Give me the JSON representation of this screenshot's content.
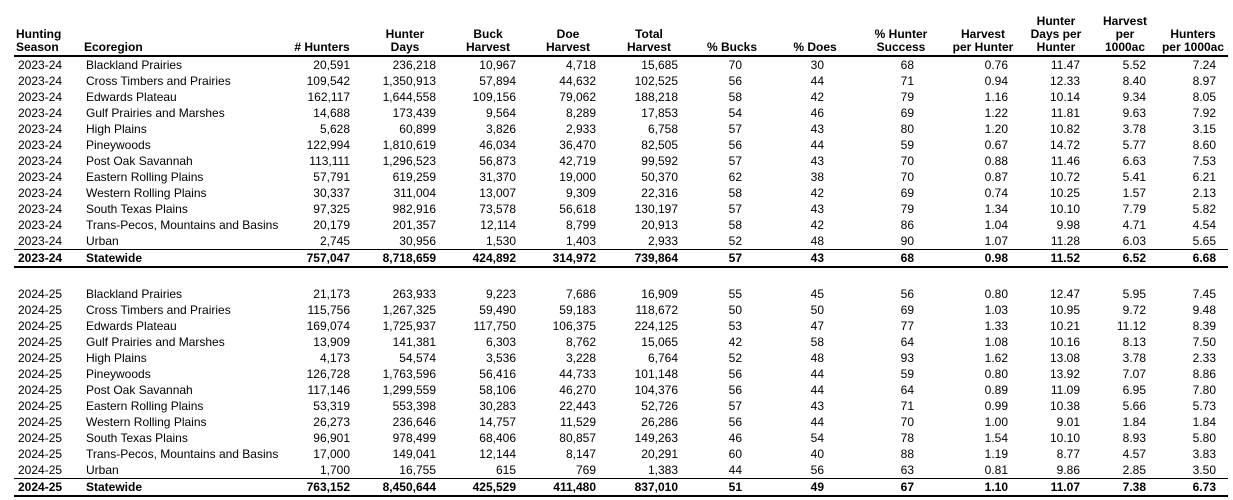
{
  "table": {
    "header": [
      [
        "Hunting",
        "Season"
      ],
      [
        "Ecoregion"
      ],
      [
        "# Hunters"
      ],
      [
        "Hunter",
        "Days"
      ],
      [
        "Buck",
        "Harvest"
      ],
      [
        "Doe",
        "Harvest"
      ],
      [
        "Total",
        "Harvest"
      ],
      [
        "% Bucks"
      ],
      [
        "% Does"
      ],
      [
        "% Hunter",
        "Success"
      ],
      [
        "Harvest",
        "per Hunter"
      ],
      [
        "Hunter",
        "Days per",
        "Hunter"
      ],
      [
        "Harvest",
        "per",
        "1000ac"
      ],
      [
        "Hunters",
        "per 1000ac"
      ]
    ],
    "groups": [
      {
        "rows": [
          [
            "2023-24",
            "Blackland Prairies",
            "20,591",
            "236,218",
            "10,967",
            "4,718",
            "15,685",
            "70",
            "30",
            "68",
            "0.76",
            "11.47",
            "5.52",
            "7.24"
          ],
          [
            "2023-24",
            "Cross Timbers and Prairies",
            "109,542",
            "1,350,913",
            "57,894",
            "44,632",
            "102,525",
            "56",
            "44",
            "71",
            "0.94",
            "12.33",
            "8.40",
            "8.97"
          ],
          [
            "2023-24",
            "Edwards Plateau",
            "162,117",
            "1,644,558",
            "109,156",
            "79,062",
            "188,218",
            "58",
            "42",
            "79",
            "1.16",
            "10.14",
            "9.34",
            "8.05"
          ],
          [
            "2023-24",
            "Gulf Prairies and Marshes",
            "14,688",
            "173,439",
            "9,564",
            "8,289",
            "17,853",
            "54",
            "46",
            "69",
            "1.22",
            "11.81",
            "9.63",
            "7.92"
          ],
          [
            "2023-24",
            "High Plains",
            "5,628",
            "60,899",
            "3,826",
            "2,933",
            "6,758",
            "57",
            "43",
            "80",
            "1.20",
            "10.82",
            "3.78",
            "3.15"
          ],
          [
            "2023-24",
            "Pineywoods",
            "122,994",
            "1,810,619",
            "46,034",
            "36,470",
            "82,505",
            "56",
            "44",
            "59",
            "0.67",
            "14.72",
            "5.77",
            "8.60"
          ],
          [
            "2023-24",
            "Post Oak Savannah",
            "113,111",
            "1,296,523",
            "56,873",
            "42,719",
            "99,592",
            "57",
            "43",
            "70",
            "0.88",
            "11.46",
            "6.63",
            "7.53"
          ],
          [
            "2023-24",
            "Eastern Rolling Plains",
            "57,791",
            "619,259",
            "31,370",
            "19,000",
            "50,370",
            "62",
            "38",
            "70",
            "0.87",
            "10.72",
            "5.41",
            "6.21"
          ],
          [
            "2023-24",
            "Western Rolling Plains",
            "30,337",
            "311,004",
            "13,007",
            "9,309",
            "22,316",
            "58",
            "42",
            "69",
            "0.74",
            "10.25",
            "1.57",
            "2.13"
          ],
          [
            "2023-24",
            "South Texas Plains",
            "97,325",
            "982,916",
            "73,578",
            "56,618",
            "130,197",
            "57",
            "43",
            "79",
            "1.34",
            "10.10",
            "7.79",
            "5.82"
          ],
          [
            "2023-24",
            "Trans-Pecos, Mountains and Basins",
            "20,179",
            "201,357",
            "12,114",
            "8,799",
            "20,913",
            "58",
            "42",
            "86",
            "1.04",
            "9.98",
            "4.71",
            "4.54"
          ],
          [
            "2023-24",
            "Urban",
            "2,745",
            "30,956",
            "1,530",
            "1,403",
            "2,933",
            "52",
            "48",
            "90",
            "1.07",
            "11.28",
            "6.03",
            "5.65"
          ]
        ],
        "total": [
          "2023-24",
          "Statewide",
          "757,047",
          "8,718,659",
          "424,892",
          "314,972",
          "739,864",
          "57",
          "43",
          "68",
          "0.98",
          "11.52",
          "6.52",
          "6.68"
        ]
      },
      {
        "rows": [
          [
            "2024-25",
            "Blackland Prairies",
            "21,173",
            "263,933",
            "9,223",
            "7,686",
            "16,909",
            "55",
            "45",
            "56",
            "0.80",
            "12.47",
            "5.95",
            "7.45"
          ],
          [
            "2024-25",
            "Cross Timbers and Prairies",
            "115,756",
            "1,267,325",
            "59,490",
            "59,183",
            "118,672",
            "50",
            "50",
            "69",
            "1.03",
            "10.95",
            "9.72",
            "9.48"
          ],
          [
            "2024-25",
            "Edwards Plateau",
            "169,074",
            "1,725,937",
            "117,750",
            "106,375",
            "224,125",
            "53",
            "47",
            "77",
            "1.33",
            "10.21",
            "11.12",
            "8.39"
          ],
          [
            "2024-25",
            "Gulf Prairies and Marshes",
            "13,909",
            "141,381",
            "6,303",
            "8,762",
            "15,065",
            "42",
            "58",
            "64",
            "1.08",
            "10.16",
            "8.13",
            "7.50"
          ],
          [
            "2024-25",
            "High Plains",
            "4,173",
            "54,574",
            "3,536",
            "3,228",
            "6,764",
            "52",
            "48",
            "93",
            "1.62",
            "13.08",
            "3.78",
            "2.33"
          ],
          [
            "2024-25",
            "Pineywoods",
            "126,728",
            "1,763,596",
            "56,416",
            "44,733",
            "101,148",
            "56",
            "44",
            "59",
            "0.80",
            "13.92",
            "7.07",
            "8.86"
          ],
          [
            "2024-25",
            "Post Oak Savannah",
            "117,146",
            "1,299,559",
            "58,106",
            "46,270",
            "104,376",
            "56",
            "44",
            "64",
            "0.89",
            "11.09",
            "6.95",
            "7.80"
          ],
          [
            "2024-25",
            "Eastern Rolling Plains",
            "53,319",
            "553,398",
            "30,283",
            "22,443",
            "52,726",
            "57",
            "43",
            "71",
            "0.99",
            "10.38",
            "5.66",
            "5.73"
          ],
          [
            "2024-25",
            "Western Rolling Plains",
            "26,273",
            "236,646",
            "14,757",
            "11,529",
            "26,286",
            "56",
            "44",
            "70",
            "1.00",
            "9.01",
            "1.84",
            "1.84"
          ],
          [
            "2024-25",
            "South Texas Plains",
            "96,901",
            "978,499",
            "68,406",
            "80,857",
            "149,263",
            "46",
            "54",
            "78",
            "1.54",
            "10.10",
            "8.93",
            "5.80"
          ],
          [
            "2024-25",
            "Trans-Pecos, Mountains and Basins",
            "17,000",
            "149,041",
            "12,144",
            "8,147",
            "20,291",
            "60",
            "40",
            "88",
            "1.19",
            "8.77",
            "4.57",
            "3.83"
          ],
          [
            "2024-25",
            "Urban",
            "1,700",
            "16,755",
            "615",
            "769",
            "1,383",
            "44",
            "56",
            "63",
            "0.81",
            "9.86",
            "2.85",
            "3.50"
          ]
        ],
        "total": [
          "2024-25",
          "Statewide",
          "763,152",
          "8,450,644",
          "425,529",
          "411,480",
          "837,010",
          "51",
          "49",
          "67",
          "1.10",
          "11.07",
          "7.38",
          "6.73"
        ]
      }
    ]
  }
}
